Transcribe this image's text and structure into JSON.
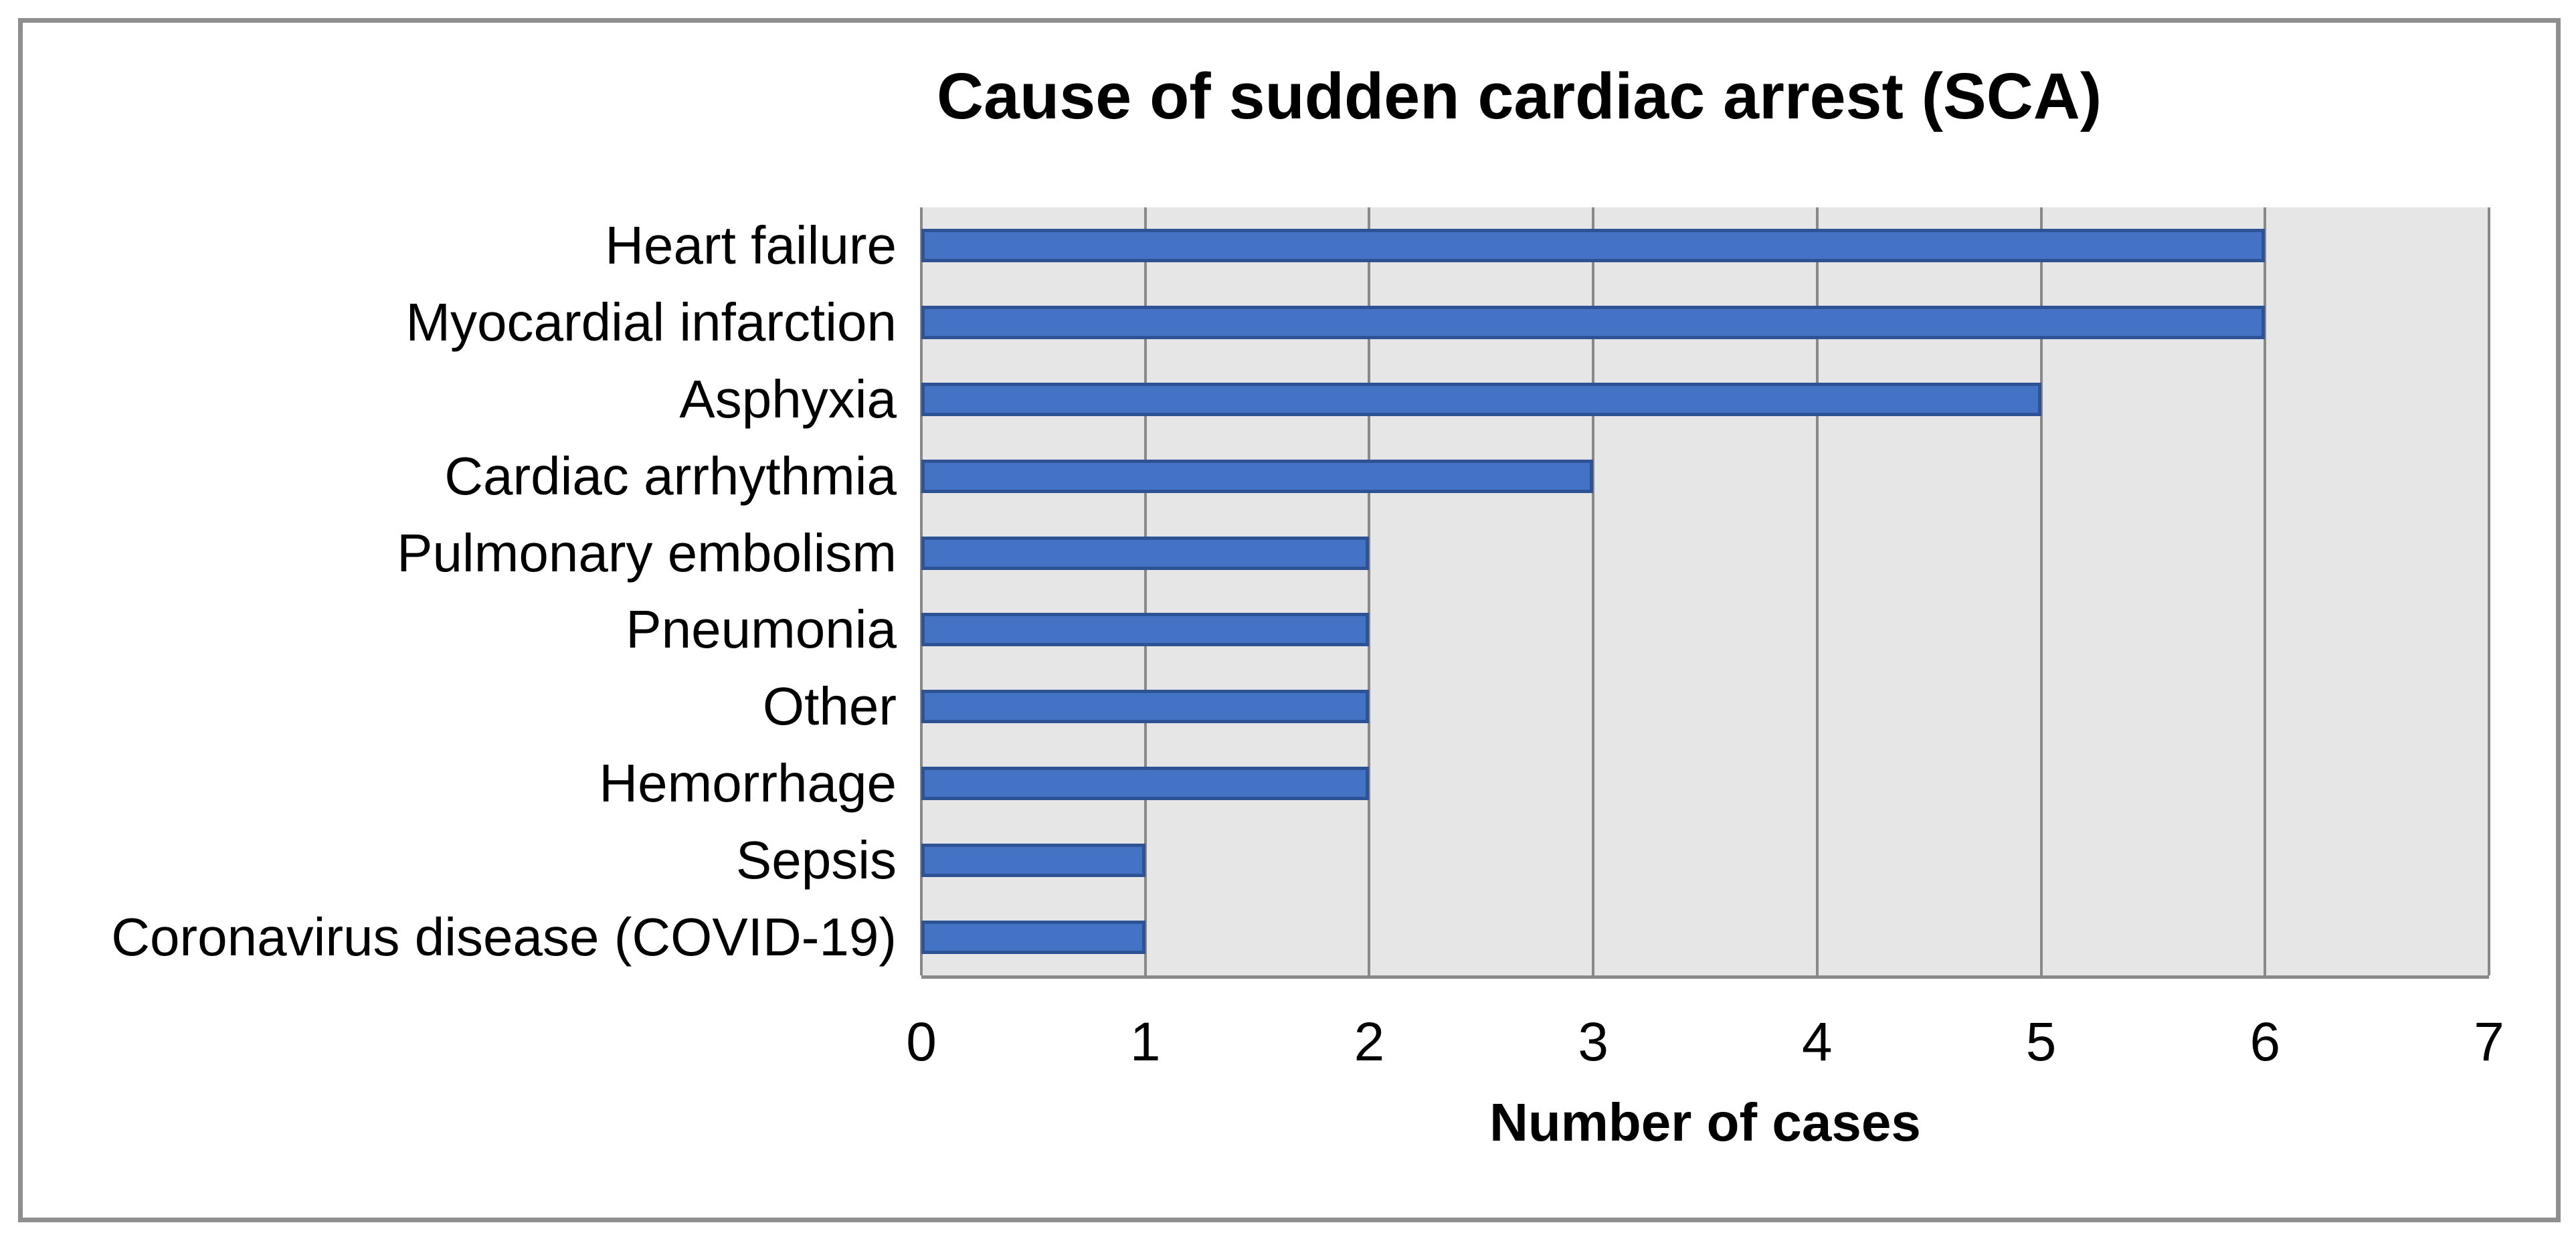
{
  "chart_data": {
    "type": "bar",
    "orientation": "horizontal",
    "title": "Cause of sudden cardiac arrest (SCA)",
    "categories": [
      "Heart failure",
      "Myocardial infarction",
      "Asphyxia",
      "Cardiac arrhythmia",
      "Pulmonary embolism",
      "Pneumonia",
      "Other",
      "Hemorrhage",
      "Sepsis",
      "Coronavirus disease (COVID-19)"
    ],
    "values": [
      6,
      6,
      5,
      3,
      2,
      2,
      2,
      2,
      1,
      1
    ],
    "xlabel": "Number of cases",
    "ylabel": "",
    "xlim": [
      0,
      7
    ],
    "xticks": [
      0,
      1,
      2,
      3,
      4,
      5,
      6,
      7
    ],
    "grid": true,
    "legend": false,
    "colors": {
      "bar_fill": "#4472C4",
      "bar_border": "#2E5394",
      "plot_bg": "#E6E6E6",
      "gridline": "#898989",
      "frame_border": "#8F8F8F",
      "text": "#000000",
      "background": "#FFFFFF"
    }
  }
}
